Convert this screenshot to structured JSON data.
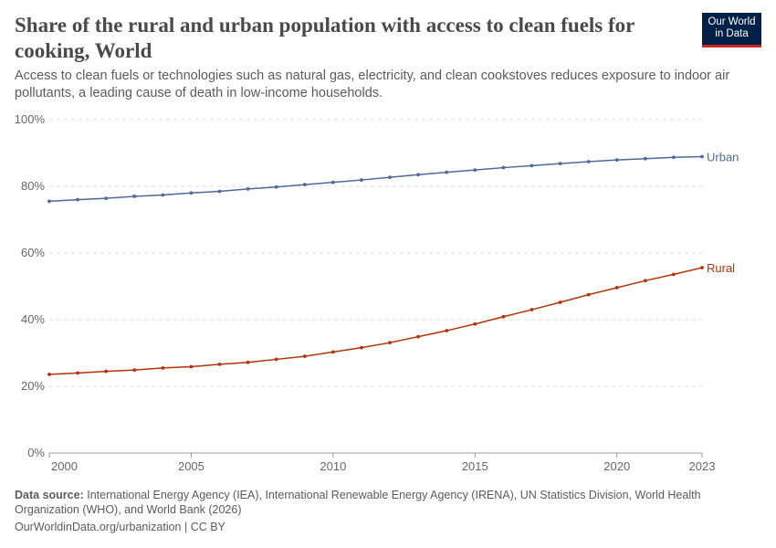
{
  "title": "Share of the rural and urban population with access to clean fuels for cooking, World",
  "subtitle": "Access to clean fuels or technologies such as natural gas, electricity, and clean cookstoves reduces exposure to indoor air pollutants, a leading cause of death in low-income households.",
  "logo": {
    "line1": "Our World",
    "line2": "in Data"
  },
  "footer": {
    "source_label": "Data source:",
    "source_text": "International Energy Agency (IEA), International Renewable Energy Agency (IRENA), UN Statistics Division, World Health Organization (WHO), and World Bank (2026)",
    "url": "OurWorldinData.org/urbanization | CC BY"
  },
  "chart_data": {
    "type": "line",
    "x": [
      2000,
      2001,
      2002,
      2003,
      2004,
      2005,
      2006,
      2007,
      2008,
      2009,
      2010,
      2011,
      2012,
      2013,
      2014,
      2015,
      2016,
      2017,
      2018,
      2019,
      2020,
      2021,
      2022,
      2023
    ],
    "xticks": [
      "2000",
      "2005",
      "2010",
      "2015",
      "2020",
      "2023"
    ],
    "xtick_values": [
      2000,
      2005,
      2010,
      2015,
      2020,
      2023
    ],
    "yticks": [
      "0%",
      "20%",
      "40%",
      "60%",
      "80%",
      "100%"
    ],
    "ylim": [
      0,
      100
    ],
    "grid": "horizontal dashed",
    "series": [
      {
        "name": "Urban",
        "color": "#4c6a9c",
        "values": [
          75.5,
          76.0,
          76.4,
          77.0,
          77.4,
          78.0,
          78.5,
          79.2,
          79.8,
          80.5,
          81.2,
          81.9,
          82.7,
          83.5,
          84.2,
          84.9,
          85.6,
          86.2,
          86.8,
          87.4,
          87.9,
          88.3,
          88.7,
          88.9
        ]
      },
      {
        "name": "Rural",
        "color": "#b13507",
        "values": [
          23.6,
          24.0,
          24.5,
          24.9,
          25.5,
          25.9,
          26.6,
          27.2,
          28.1,
          29.0,
          30.3,
          31.6,
          33.1,
          34.9,
          36.7,
          38.7,
          40.9,
          43.0,
          45.2,
          47.5,
          49.6,
          51.7,
          53.6,
          55.6
        ]
      }
    ]
  }
}
